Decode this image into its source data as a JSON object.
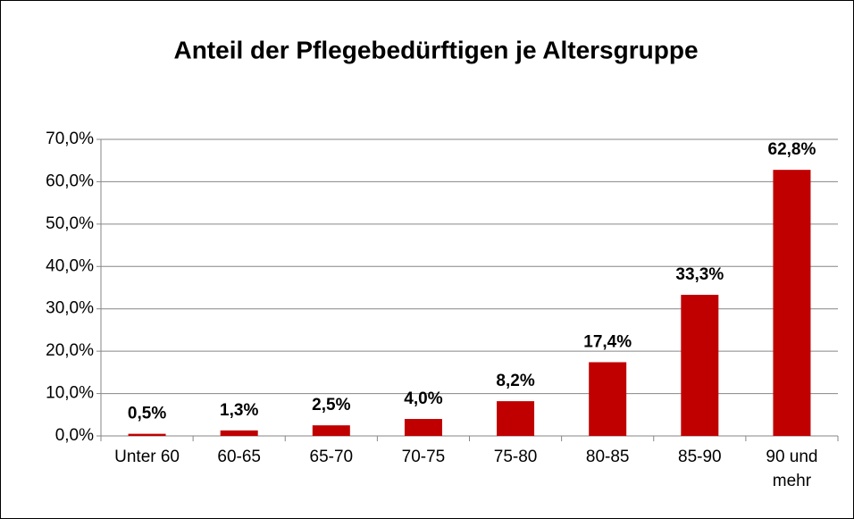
{
  "chart_data": {
    "type": "bar",
    "title": "Anteil der Pflegebedürftigen je Altersgruppe",
    "categories": [
      "Unter 60",
      "60-65",
      "65-70",
      "70-75",
      "75-80",
      "80-85",
      "85-90",
      "90 und mehr"
    ],
    "values": [
      0.5,
      1.3,
      2.5,
      4.0,
      8.2,
      17.4,
      33.3,
      62.8
    ],
    "value_labels": [
      "0,5%",
      "1,3%",
      "2,5%",
      "4,0%",
      "8,2%",
      "17,4%",
      "33,3%",
      "62,8%"
    ],
    "color": "#c00000",
    "ylim": [
      0,
      70
    ],
    "yticks": [
      {
        "value": 0,
        "label": "0,0%"
      },
      {
        "value": 10,
        "label": "10,0%"
      },
      {
        "value": 20,
        "label": "20,0%"
      },
      {
        "value": 30,
        "label": "30,0%"
      },
      {
        "value": 40,
        "label": "40,0%"
      },
      {
        "value": 50,
        "label": "50,0%"
      },
      {
        "value": 60,
        "label": "60,0%"
      },
      {
        "value": 70,
        "label": "70,0%"
      }
    ],
    "grid": true
  }
}
